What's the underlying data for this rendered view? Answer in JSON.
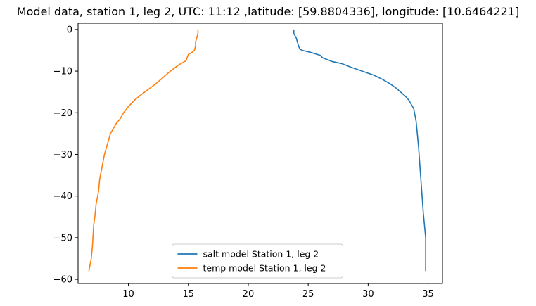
{
  "chart_data": {
    "type": "line",
    "title": "Model data, station 1, leg 2, UTC: 11:12 ,latitude: [59.8804336], longitude: [10.6464221]",
    "xlabel": "",
    "ylabel": "",
    "xlim": [
      5.8,
      36.2
    ],
    "ylim": [
      -61,
      1.5
    ],
    "xticks": [
      10,
      15,
      20,
      25,
      30,
      35
    ],
    "yticks": [
      0,
      -10,
      -20,
      -30,
      -40,
      -50,
      -60
    ],
    "xtick_labels": [
      "10",
      "15",
      "20",
      "25",
      "30",
      "35"
    ],
    "ytick_labels": [
      "0",
      "−10",
      "−20",
      "−30",
      "−40",
      "−50",
      "−60"
    ],
    "grid": false,
    "legend_position": "lower center",
    "series": [
      {
        "name": "salt model Station 1, leg 2",
        "color": "#1f77b4",
        "x": [
          23.8,
          23.8,
          23.9,
          24.0,
          24.1,
          24.2,
          24.3,
          24.5,
          25.2,
          26.0,
          26.2,
          27.0,
          27.8,
          28.5,
          29.5,
          30.5,
          31.2,
          31.8,
          32.3,
          32.7,
          33.1,
          33.4,
          33.8,
          34.0,
          34.1,
          34.2,
          34.3,
          34.4,
          34.5,
          34.6,
          34.7,
          34.8,
          34.8,
          34.8
        ],
        "y": [
          0,
          -1,
          -1.5,
          -2,
          -3,
          -4,
          -4.7,
          -5,
          -5.5,
          -6.2,
          -6.8,
          -7.7,
          -8.2,
          -9,
          -10,
          -11,
          -12,
          -13,
          -14,
          -15,
          -16,
          -17,
          -19,
          -22,
          -25,
          -28,
          -32,
          -36,
          -40,
          -44,
          -47,
          -50,
          -54,
          -58
        ]
      },
      {
        "name": "temp model Station 1, leg 2",
        "color": "#ff7f0e",
        "x": [
          15.8,
          15.8,
          15.7,
          15.6,
          15.6,
          15.5,
          15.3,
          15.0,
          14.8,
          14.2,
          13.5,
          12.9,
          12.3,
          11.6,
          11.0,
          10.5,
          10.0,
          9.6,
          9.3,
          9.0,
          8.8,
          8.5,
          8.3,
          8.0,
          7.8,
          7.6,
          7.5,
          7.3,
          7.2,
          7.1,
          7.0,
          6.9,
          6.7
        ],
        "y": [
          0,
          -1,
          -2,
          -3,
          -4,
          -5,
          -5.5,
          -6,
          -7.5,
          -8.5,
          -10,
          -11.5,
          -13,
          -14.5,
          -15.8,
          -17,
          -18.5,
          -20,
          -21.5,
          -22.5,
          -23.5,
          -25,
          -27,
          -30,
          -33,
          -36,
          -39,
          -42,
          -45,
          -47,
          -52,
          -55,
          -58
        ]
      }
    ]
  }
}
